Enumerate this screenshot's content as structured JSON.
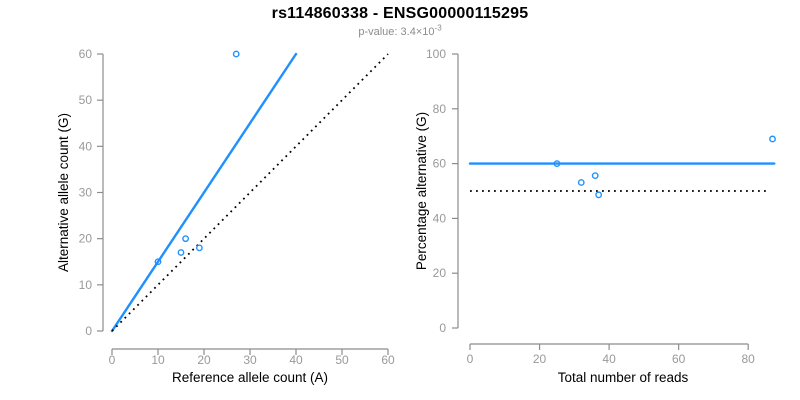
{
  "header": {
    "title": "rs114860338 - ENSG00000115295",
    "subtitle": {
      "label": "p-value:",
      "mantissa": "3.4",
      "times": "×",
      "base": "10",
      "exponent": "-3"
    }
  },
  "colors": {
    "accent_blue": "#1e90ff",
    "axis_line_gray": "#8c8c8c",
    "tick_text_gray": "#999999",
    "axis_title_black": "#000000",
    "dotted_line_black": "#000000"
  },
  "chart_data": [
    {
      "type": "scatter",
      "panel": "allele-counts",
      "title": "",
      "xlabel": "Reference allele count (A)",
      "ylabel": "Alternative allele count (G)",
      "xlim": [
        0,
        60
      ],
      "ylim": [
        0,
        60
      ],
      "xticks": [
        0,
        10,
        20,
        30,
        40,
        50,
        60
      ],
      "yticks": [
        0,
        10,
        20,
        30,
        40,
        50,
        60
      ],
      "grid": false,
      "legend": null,
      "points": [
        [
          10,
          15
        ],
        [
          15,
          17
        ],
        [
          16,
          20
        ],
        [
          19,
          18
        ],
        [
          27,
          60
        ]
      ],
      "lines": [
        {
          "name": "fit-line",
          "style": "solid",
          "color": "blue",
          "x1": 0,
          "y1": 0,
          "x2": 40,
          "y2": 60
        },
        {
          "name": "identity-line",
          "style": "dotted",
          "color": "black",
          "x1": 0,
          "y1": 0,
          "x2": 60,
          "y2": 60
        }
      ]
    },
    {
      "type": "scatter",
      "panel": "percentage-alternative",
      "title": "",
      "xlabel": "Total number of reads",
      "ylabel": "Percentage alternative (G)",
      "xlim": [
        0,
        88
      ],
      "ylim": [
        0,
        100
      ],
      "xticks": [
        0,
        20,
        40,
        60,
        80
      ],
      "yticks": [
        0,
        20,
        40,
        60,
        80,
        100
      ],
      "grid": false,
      "legend": null,
      "points": [
        [
          25,
          60
        ],
        [
          32,
          53.1
        ],
        [
          36,
          55.6
        ],
        [
          37,
          48.6
        ],
        [
          87,
          69
        ]
      ],
      "lines": [
        {
          "name": "fit-line",
          "style": "solid",
          "color": "blue",
          "x1": 0,
          "y1": 60,
          "x2": 87.5,
          "y2": 60
        },
        {
          "name": "null-line",
          "style": "dotted",
          "color": "black",
          "x1": 0,
          "y1": 50,
          "x2": 86,
          "y2": 50
        }
      ]
    }
  ]
}
